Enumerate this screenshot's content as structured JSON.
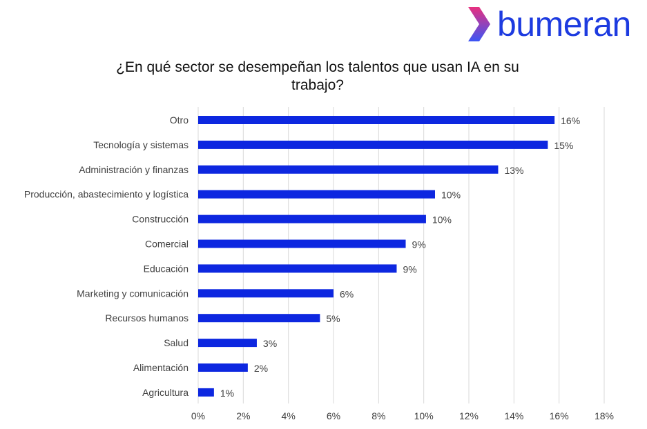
{
  "brand": {
    "name": "bumeran",
    "colors": {
      "wordmark": "#1d3be0",
      "chevron_top": "#e8307f",
      "chevron_bottom": "#3b55f5"
    }
  },
  "chart_data": {
    "type": "bar",
    "orientation": "horizontal",
    "title_lines": [
      "¿En qué sector se desempeñan los talentos que usan IA en su",
      "trabajo?"
    ],
    "categories": [
      "Otro",
      "Tecnología y sistemas",
      "Administración y finanzas",
      "Producción, abastecimiento y logística",
      "Construcción",
      "Comercial",
      "Educación",
      "Marketing y comunicación",
      "Recursos humanos",
      "Salud",
      "Alimentación",
      "Agricultura"
    ],
    "values": [
      15.8,
      15.5,
      13.3,
      10.5,
      10.1,
      9.2,
      8.8,
      6.0,
      5.4,
      2.6,
      2.2,
      0.7
    ],
    "data_labels": [
      "16%",
      "15%",
      "13%",
      "10%",
      "10%",
      "9%",
      "9%",
      "6%",
      "5%",
      "3%",
      "2%",
      "1%"
    ],
    "xlim": [
      0,
      18
    ],
    "x_ticks": [
      "0%",
      "2%",
      "4%",
      "6%",
      "8%",
      "10%",
      "12%",
      "14%",
      "16%",
      "18%"
    ],
    "grid": "vertical",
    "legend": "none",
    "bar_color": "#0d27e0",
    "grid_color": "#d9d9d9"
  }
}
